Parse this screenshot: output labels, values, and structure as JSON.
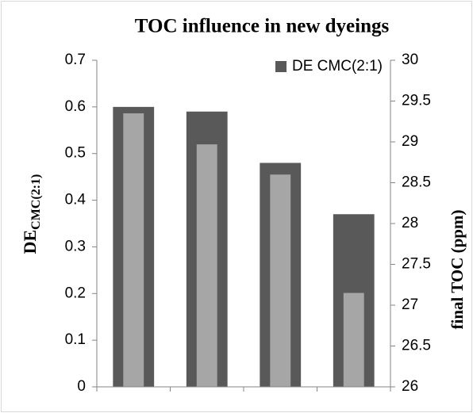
{
  "chart_data": {
    "type": "bar",
    "title": "TOC influence in new dyeings",
    "y_label": "DE",
    "y_label_sub": "CMC(2:1)",
    "y2_label": "final TOC (ppm)",
    "categories": [
      null,
      null,
      null,
      null
    ],
    "series": [
      {
        "name": "DE CMC(2:1)",
        "color": "#595959",
        "values": [
          0.6,
          0.59,
          0.48,
          0.37
        ]
      },
      {
        "color": "#a6a6a6",
        "axis": "y2",
        "values": [
          29.35,
          28.97,
          28.6,
          27.15
        ]
      }
    ],
    "ylim": [
      0,
      0.7
    ],
    "yticks": [
      0,
      0.1,
      0.2,
      0.3,
      0.4,
      0.5,
      0.6,
      0.7
    ],
    "y2lim": [
      26,
      30
    ],
    "y2ticks": [
      26,
      26.5,
      27,
      27.5,
      28,
      28.5,
      29,
      29.5,
      30
    ],
    "grid": false,
    "legend": "top-right"
  }
}
